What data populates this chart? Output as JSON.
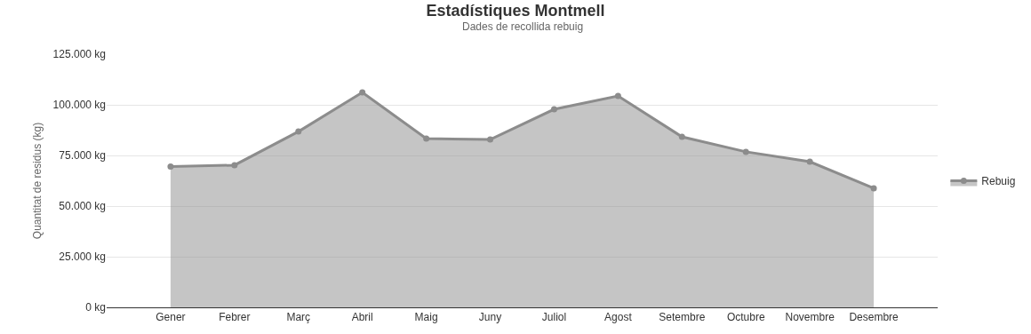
{
  "chart_data": {
    "type": "area",
    "title": "Estadístiques Montmell",
    "subtitle": "Dades de recollida rebuig",
    "ylabel": "Quantitat de residus (kg)",
    "categories": [
      "Gener",
      "Febrer",
      "Març",
      "Abril",
      "Maig",
      "Juny",
      "Juliol",
      "Agost",
      "Setembre",
      "Octubre",
      "Novembre",
      "Desembre"
    ],
    "series": [
      {
        "name": "Rebuig",
        "color": "#8c8c8c",
        "values": [
          69500,
          70200,
          86800,
          106100,
          83300,
          82900,
          97800,
          104400,
          84200,
          76800,
          71900,
          58800
        ]
      }
    ],
    "ylim": [
      0,
      125000
    ],
    "yticks": [
      {
        "value": 0,
        "label": "0 kg"
      },
      {
        "value": 25000,
        "label": "25.000 kg"
      },
      {
        "value": 50000,
        "label": "50.000 kg"
      },
      {
        "value": 75000,
        "label": "75.000 kg"
      },
      {
        "value": 100000,
        "label": "100.000 kg"
      },
      {
        "value": 125000,
        "label": "125.000 kg"
      }
    ],
    "grid": "y",
    "legend": "right",
    "marker": "circle",
    "line_style": "solid"
  }
}
